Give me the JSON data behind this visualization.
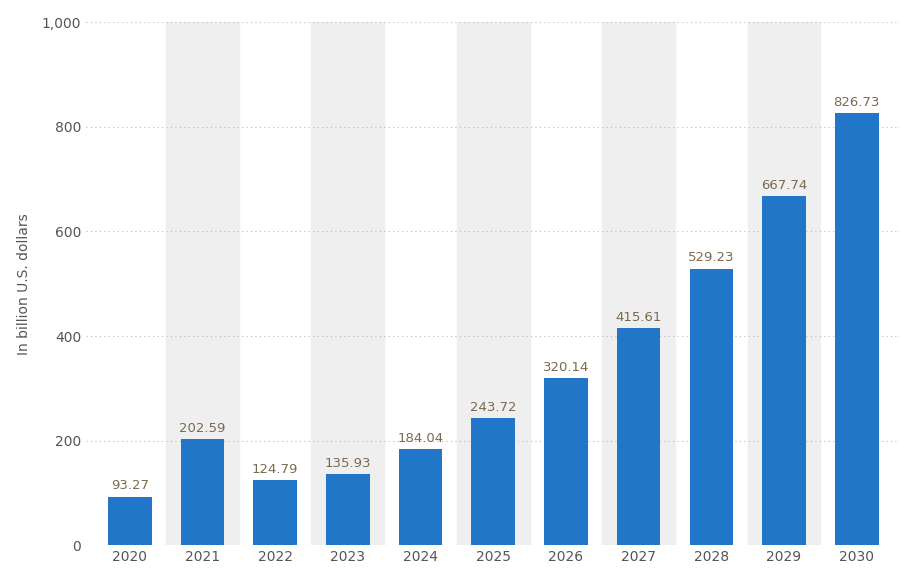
{
  "categories": [
    "2020",
    "2021",
    "2022",
    "2023",
    "2024",
    "2025",
    "2026",
    "2027",
    "2028",
    "2029",
    "2030"
  ],
  "values": [
    93.27,
    202.59,
    124.79,
    135.93,
    184.04,
    243.72,
    320.14,
    415.61,
    529.23,
    667.74,
    826.73
  ],
  "bar_color": "#2176c7",
  "bar_width": 0.6,
  "ylabel": "In billion U.S. dollars",
  "ylim": [
    0,
    1000
  ],
  "yticks": [
    0,
    200,
    400,
    600,
    800,
    1000
  ],
  "ytick_labels": [
    "0",
    "200",
    "400",
    "600",
    "800",
    "1,000"
  ],
  "grid_color": "#bbbbbb",
  "grid_linestyle": "dotted",
  "bg_color": "#ffffff",
  "col_bg_color": "#efefef",
  "label_color": "#7a6a50",
  "label_fontsize": 9.5,
  "axis_fontsize": 10,
  "ylabel_fontsize": 10
}
